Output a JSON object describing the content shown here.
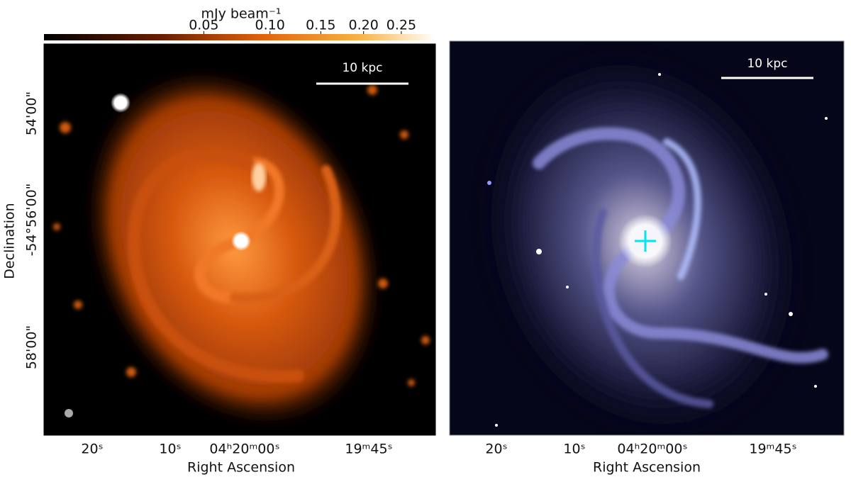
{
  "colorbar": {
    "label": "mJy beam⁻¹",
    "lim": [
      0,
      0.3
    ],
    "stretch": "sqrt",
    "ticks": [
      0.05,
      {
        "value": 0.1,
        "label": "0.10"
      },
      0.15,
      {
        "value": 0.2,
        "label": "0.20"
      },
      0.25
    ]
  },
  "panels": [
    {
      "scale_bar": "10 kpc",
      "xlabel": "Right Ascension",
      "ylabel": "Declination",
      "xticks": [
        "20ˢ",
        "10ˢ",
        "04ʰ20ᵐ00ˢ",
        "19ᵐ45ˢ"
      ],
      "yticks": [
        "54'00\"",
        "-54°56'00\"",
        "58'00\""
      ]
    },
    {
      "scale_bar": "10 kpc",
      "xlabel": "Right Ascension",
      "xticks": [
        "20ˢ",
        "10ˢ",
        "04ʰ20ᵐ00ˢ",
        "19ᵐ45ˢ"
      ]
    }
  ]
}
